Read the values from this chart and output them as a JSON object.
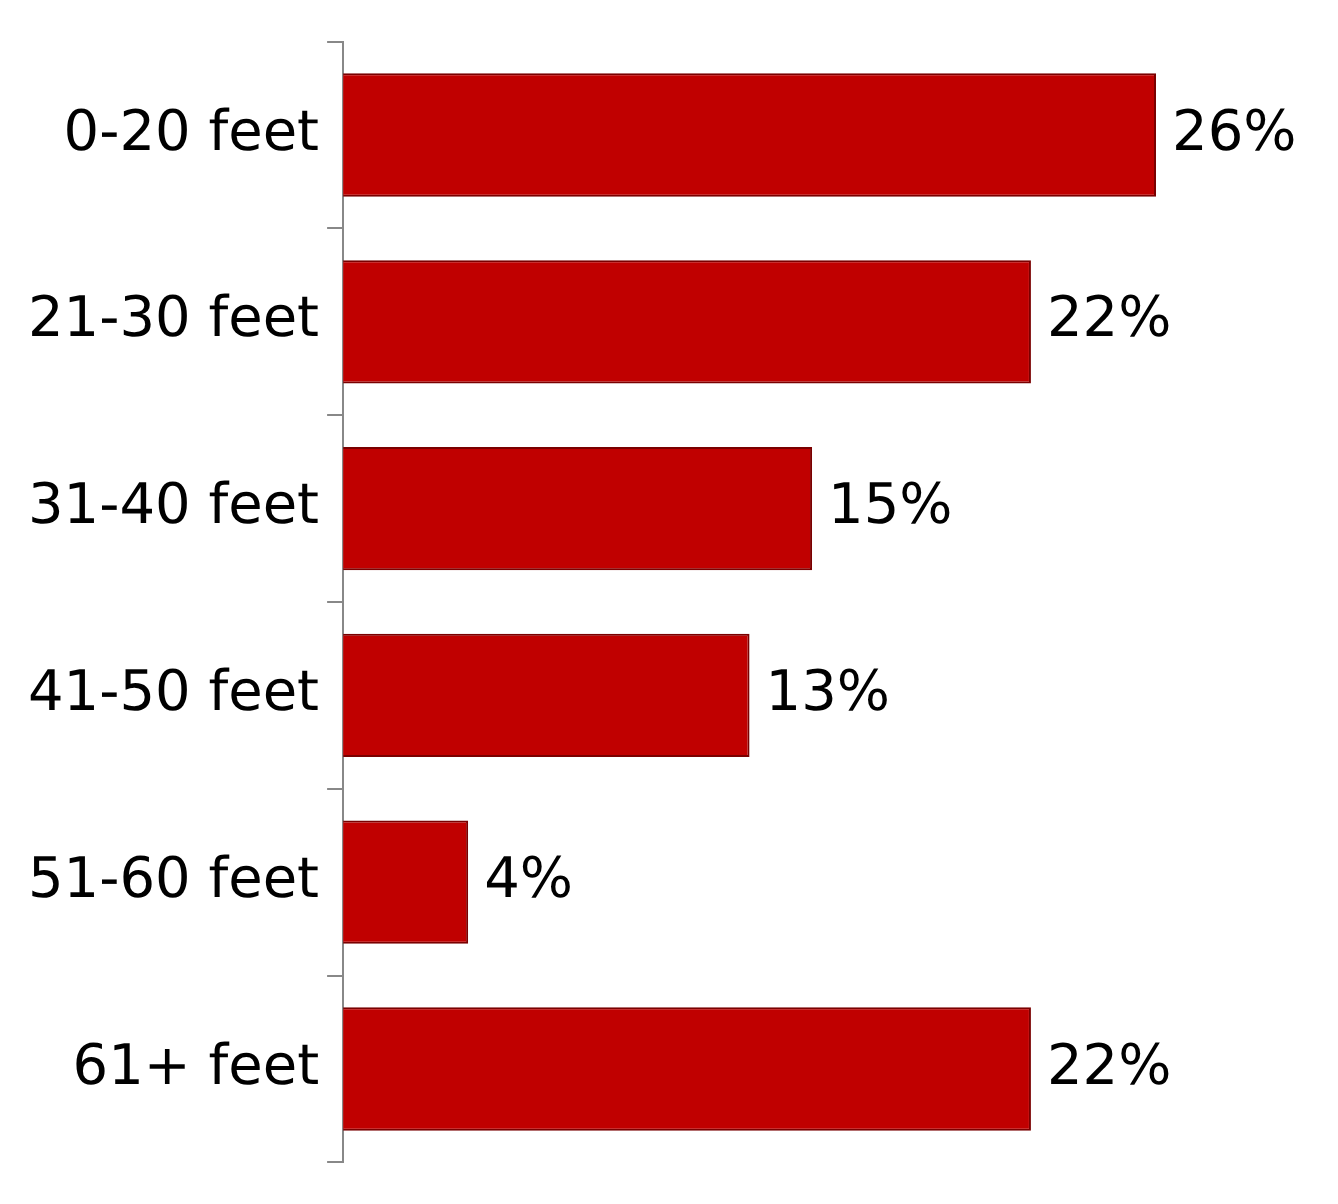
{
  "chart_data": {
    "type": "bar",
    "orientation": "horizontal",
    "categories": [
      "0-20 feet",
      "21-30 feet",
      "31-40 feet",
      "41-50 feet",
      "51-60 feet",
      "61+ feet"
    ],
    "values": [
      26,
      22,
      15,
      13,
      4,
      22
    ],
    "value_labels": [
      "26%",
      "22%",
      "15%",
      "13%",
      "4%",
      "22%"
    ],
    "color": "#c00000",
    "tick_labels": "y"
  }
}
